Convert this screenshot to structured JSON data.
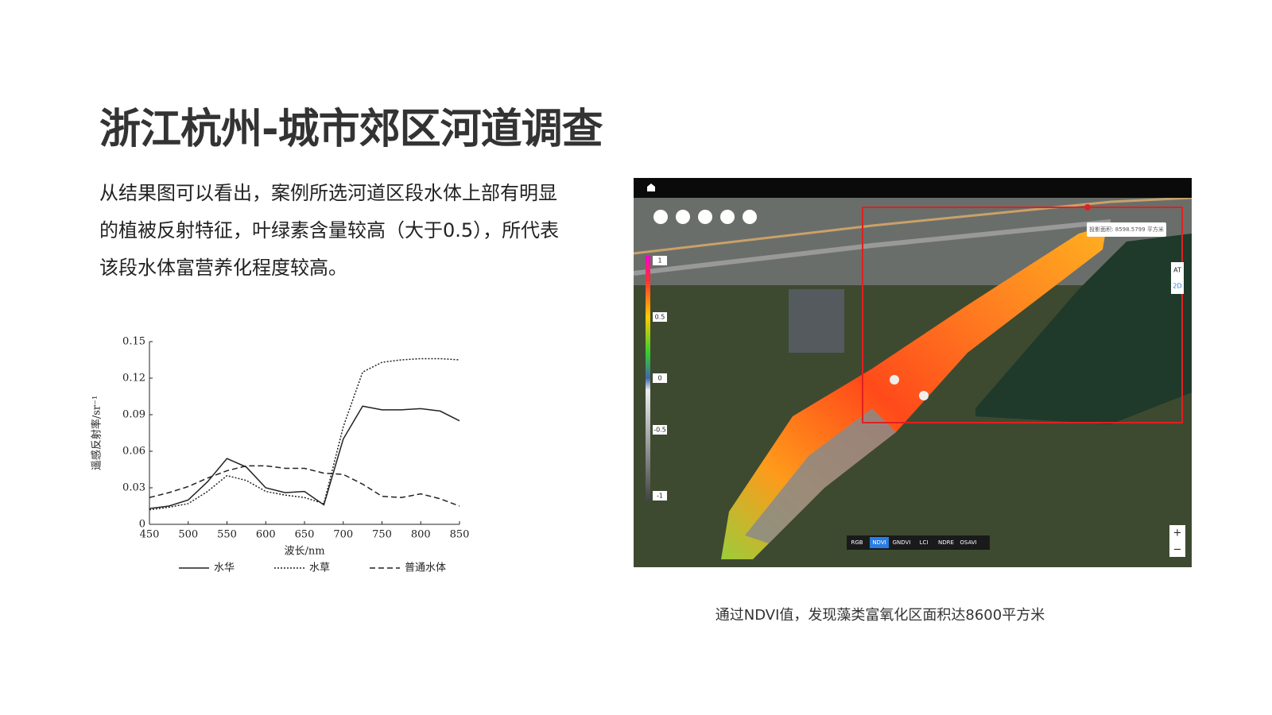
{
  "header": {
    "title": "浙江杭州-城市郊区河道调查"
  },
  "body": {
    "paragraph": [
      "从结果图可以看出，案例所选河道区段水体上部有明显",
      "的植被反射特征，叶绿素含量较高（大于0.5），所代表",
      "该段水体富营养化程度较高。"
    ]
  },
  "chart_data": {
    "type": "line",
    "x_label": "波长/nm",
    "y_label": "遥感反射率/sr⁻¹",
    "x": [
      450,
      475,
      500,
      525,
      550,
      575,
      600,
      625,
      650,
      675,
      700,
      725,
      750,
      775,
      800,
      825,
      850
    ],
    "series": [
      {
        "name": "水华",
        "color": "#222222",
        "style": "solid",
        "values": [
          0.013,
          0.015,
          0.02,
          0.035,
          0.054,
          0.047,
          0.03,
          0.026,
          0.027,
          0.016,
          0.07,
          0.097,
          0.094,
          0.094,
          0.095,
          0.093,
          0.085
        ]
      },
      {
        "name": "水草",
        "color": "#222222",
        "style": "dotted",
        "values": [
          0.012,
          0.014,
          0.017,
          0.027,
          0.04,
          0.036,
          0.027,
          0.024,
          0.022,
          0.017,
          0.08,
          0.125,
          0.133,
          0.135,
          0.136,
          0.136,
          0.135
        ]
      },
      {
        "name": "普通水体",
        "color": "#222222",
        "style": "dashed",
        "values": [
          0.022,
          0.026,
          0.031,
          0.038,
          0.044,
          0.048,
          0.048,
          0.046,
          0.046,
          0.042,
          0.041,
          0.033,
          0.023,
          0.022,
          0.025,
          0.021,
          0.015
        ]
      }
    ],
    "xlim": [
      450,
      850
    ],
    "xticks": [
      450,
      500,
      550,
      600,
      650,
      700,
      750,
      800,
      850
    ],
    "ylim": [
      0,
      0.15
    ],
    "yticks": [
      0,
      0.03,
      0.06,
      0.09,
      0.12,
      0.15
    ],
    "grid": false
  },
  "map": {
    "buttons": [
      "RGB",
      "NDVI",
      "GNDVI",
      "LCI",
      "NDRE",
      "OSAVI"
    ],
    "active_button": 1,
    "scale_labels": [
      "1",
      "0.5",
      "0",
      "-0.5",
      "-1"
    ],
    "area_label": "投影面积: 8598.5799 平方米",
    "side_buttons": [
      "AT",
      "2D"
    ],
    "zoom": [
      "+",
      "−"
    ]
  },
  "caption": "通过NDVI值，发现藻类富氧化区面积达8600平方米"
}
